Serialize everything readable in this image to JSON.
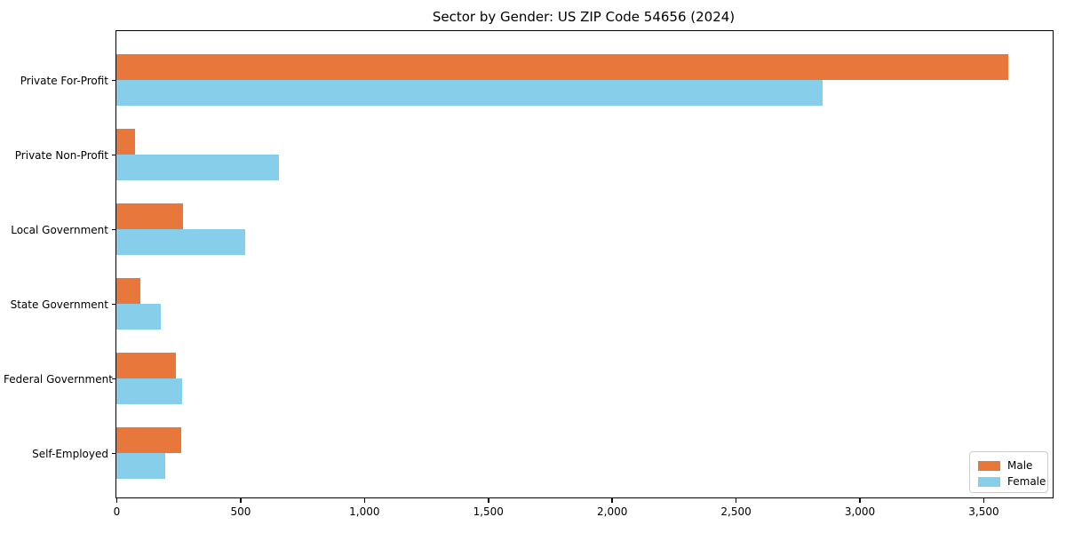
{
  "chart_data": {
    "type": "bar",
    "orientation": "horizontal",
    "title": "Sector by Gender: US ZIP Code 54656 (2024)",
    "categories": [
      "Private For-Profit",
      "Private Non-Profit",
      "Local Government",
      "State Government",
      "Federal Government",
      "Self-Employed"
    ],
    "series": [
      {
        "name": "Male",
        "color": "#e8773b",
        "values": [
          3600,
          76,
          270,
          95,
          239,
          260
        ]
      },
      {
        "name": "Female",
        "color": "#87ceeb",
        "values": [
          2850,
          655,
          520,
          180,
          267,
          198
        ]
      }
    ],
    "xlabel": "",
    "ylabel": "",
    "xlim": [
      0,
      3780
    ],
    "xticks": [
      0,
      500,
      1000,
      1500,
      2000,
      2500,
      3000,
      3500
    ],
    "xtick_labels": [
      "0",
      "500",
      "1,000",
      "1,500",
      "2,000",
      "2,500",
      "3,000",
      "3,500"
    ],
    "legend_position": "lower right",
    "grid": false,
    "background_color": "#ffffff",
    "spine_color": "#000000"
  }
}
